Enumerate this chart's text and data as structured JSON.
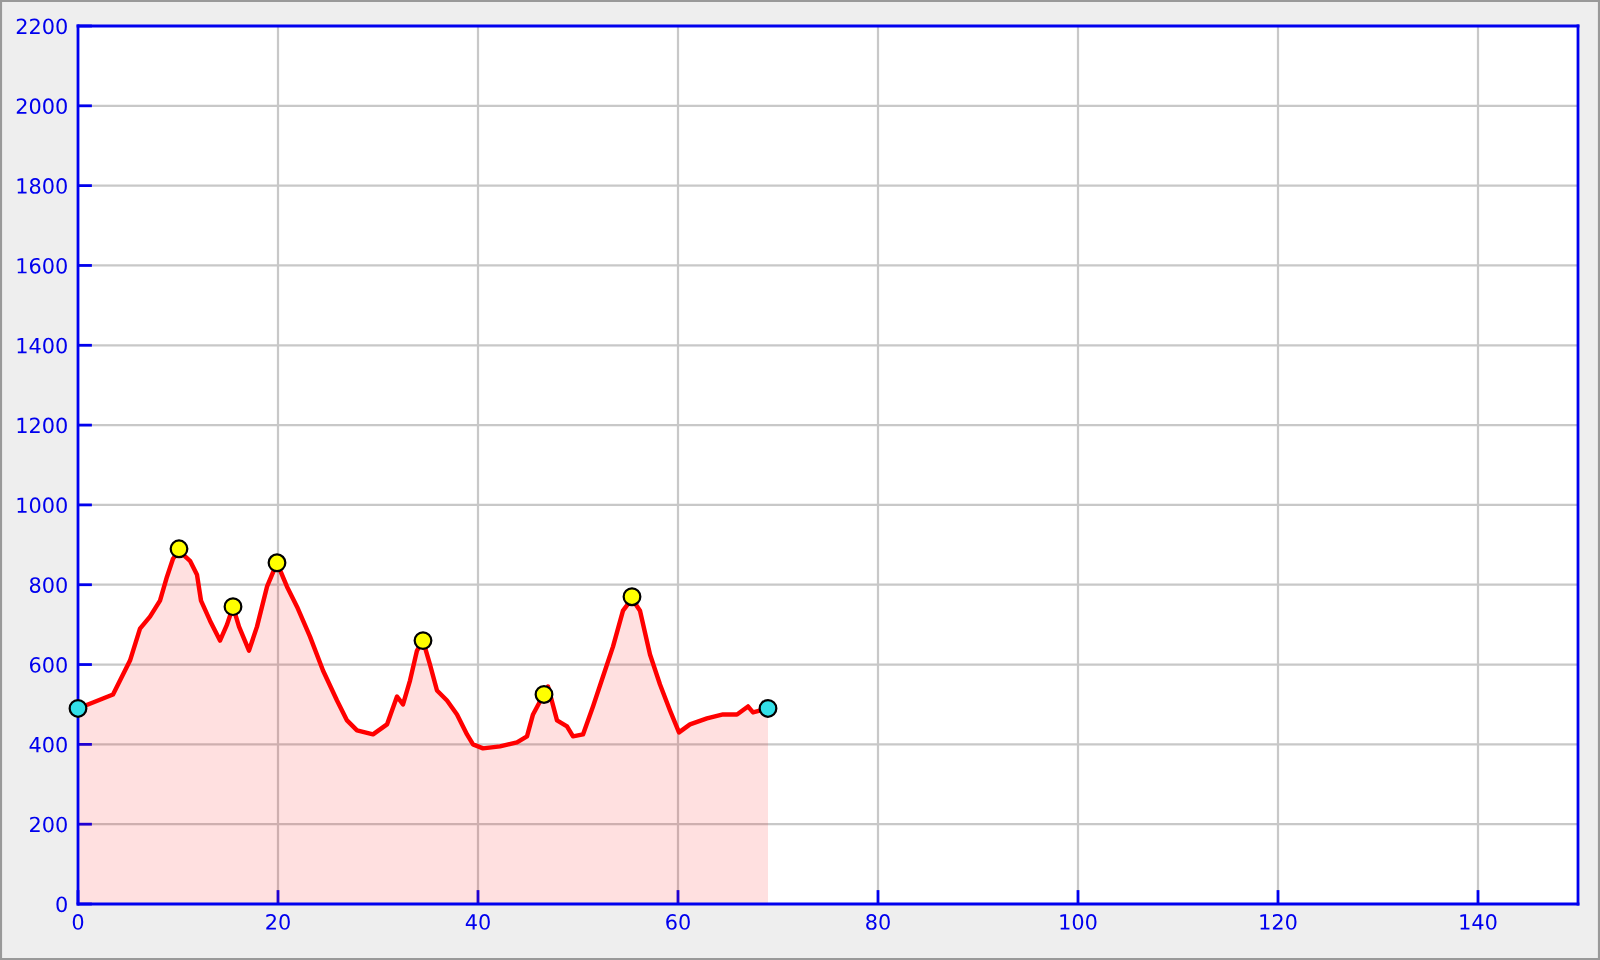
{
  "chart_data": {
    "type": "area",
    "xlim": [
      0,
      150
    ],
    "xticks": [
      0,
      20,
      40,
      60,
      80,
      100,
      120,
      140
    ],
    "ylim": [
      0,
      2200
    ],
    "yticks": [
      0,
      200,
      400,
      600,
      800,
      1000,
      1200,
      1400,
      1600,
      1800,
      2000,
      2200
    ],
    "grid": true,
    "series": [
      {
        "color": "#ff0000",
        "marker": "none",
        "x": [
          0,
          1.5,
          3.5,
          4.2,
          5.2,
          6.2,
          7.2,
          8.2,
          8.9,
          9.5,
          10.1,
          11.2,
          11.9,
          12.3,
          13.2,
          14.2,
          14.9,
          15.5,
          16.1,
          17.1,
          17.9,
          18.9,
          19.9,
          20.9,
          21.9,
          23.2,
          24.5,
          25.9,
          26.9,
          27.9,
          29.5,
          30.9,
          31.9,
          32.5,
          33.2,
          33.9,
          34.5,
          35.2,
          35.9,
          36.9,
          37.9,
          38.9,
          39.5,
          40.5,
          42.2,
          43.9,
          44.9,
          45.5,
          47,
          47.9,
          48.9,
          49.5,
          50.5,
          51.5,
          52.5,
          53.5,
          54.5,
          55.4,
          56.2,
          57.2,
          58.2,
          59.2,
          60.1,
          61.2,
          62.9,
          64.5,
          65.9,
          67,
          67.5,
          69
        ],
        "values": [
          490,
          505,
          525,
          560,
          610,
          690,
          720,
          760,
          820,
          865,
          885,
          860,
          825,
          760,
          710,
          660,
          700,
          745,
          695,
          635,
          695,
          795,
          855,
          795,
          745,
          670,
          585,
          510,
          460,
          435,
          425,
          450,
          520,
          500,
          560,
          635,
          660,
          600,
          535,
          510,
          475,
          425,
          400,
          390,
          395,
          405,
          420,
          475,
          545,
          460,
          445,
          420,
          425,
          495,
          570,
          645,
          735,
          765,
          735,
          625,
          550,
          485,
          430,
          450,
          465,
          475,
          475,
          495,
          480,
          490
        ]
      },
      {
        "type": "scatter",
        "color": "#ffff00",
        "marker": "circle",
        "x": [
          10.1,
          15.5,
          19.9,
          34.5,
          46.6,
          55.4
        ],
        "values": [
          890,
          745,
          855,
          660,
          525,
          770
        ]
      },
      {
        "type": "scatter",
        "color": "#33e0e8",
        "marker": "circle",
        "x": [
          0,
          69
        ],
        "values": [
          490,
          490
        ]
      }
    ]
  }
}
